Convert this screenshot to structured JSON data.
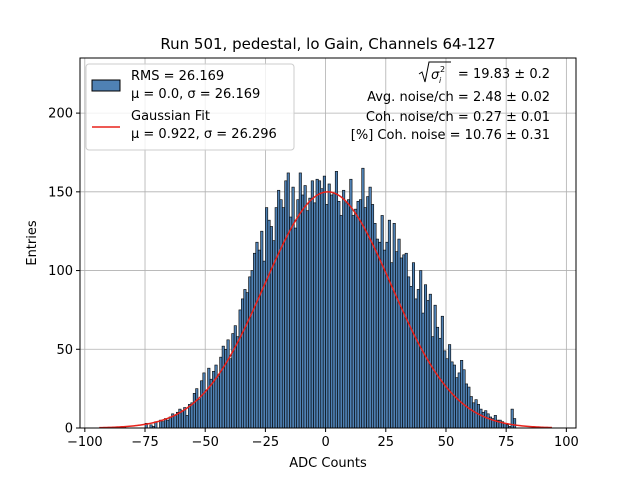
{
  "chart_data": {
    "type": "bar",
    "title": "Run 501, pedestal, lo Gain, Channels 64-127",
    "xlabel": "ADC Counts",
    "ylabel": "Entries",
    "xlim": [
      -102,
      104
    ],
    "ylim": [
      0,
      235
    ],
    "grid": true,
    "x_ticks": [
      -100,
      -75,
      -50,
      -25,
      0,
      25,
      50,
      75,
      100
    ],
    "x_tick_labels": [
      "−100",
      "−75",
      "−50",
      "−25",
      "0",
      "25",
      "50",
      "75",
      "100"
    ],
    "y_ticks": [
      0,
      50,
      100,
      150,
      200
    ],
    "y_tick_labels": [
      "0",
      "50",
      "100",
      "150",
      "200"
    ],
    "bar_color": "#4f81b4",
    "fit_color": "#e8221b",
    "legend_placement": "upper left",
    "legend": [
      {
        "kind": "patch",
        "line1": "RMS = 26.169",
        "line2": "μ = 0.0, σ = 26.169"
      },
      {
        "kind": "line",
        "line1": "Gaussian Fit",
        "line2": "μ = 0.922, σ = 26.296"
      }
    ],
    "annotations": {
      "sqrt_sigma_value": "= 19.83 ± 0.2",
      "avg_noise": "Avg. noise/ch = 2.48 ± 0.02",
      "coh_noise": "Coh. noise/ch = 0.27 ± 0.01",
      "pct_coh_noise": "[%] Coh. noise = 10.76 ± 0.31"
    },
    "histogram": {
      "bin_width": 1,
      "bin_lefts": [
        -84,
        -75,
        -73,
        -72,
        -71,
        -69,
        -68,
        -67,
        -66,
        -65,
        -64,
        -63,
        -62,
        -61,
        -60,
        -59,
        -58,
        -57,
        -56,
        -55,
        -54,
        -53,
        -52,
        -51,
        -50,
        -49,
        -48,
        -47,
        -46,
        -45,
        -44,
        -43,
        -42,
        -41,
        -40,
        -39,
        -38,
        -37,
        -36,
        -35,
        -34,
        -33,
        -32,
        -31,
        -30,
        -29,
        -28,
        -27,
        -26,
        -25,
        -24,
        -23,
        -22,
        -21,
        -20,
        -19,
        -18,
        -17,
        -16,
        -15,
        -14,
        -13,
        -12,
        -11,
        -10,
        -9,
        -8,
        -7,
        -6,
        -5,
        -4,
        -3,
        -2,
        -1,
        0,
        1,
        2,
        3,
        4,
        5,
        6,
        7,
        8,
        9,
        10,
        11,
        12,
        13,
        14,
        15,
        16,
        17,
        18,
        19,
        20,
        21,
        22,
        23,
        24,
        25,
        26,
        27,
        28,
        29,
        30,
        31,
        32,
        33,
        34,
        35,
        36,
        37,
        38,
        39,
        40,
        41,
        42,
        43,
        44,
        45,
        46,
        47,
        48,
        49,
        50,
        51,
        52,
        53,
        54,
        55,
        56,
        57,
        58,
        59,
        60,
        61,
        62,
        63,
        64,
        65,
        66,
        67,
        68,
        69,
        70,
        71,
        72,
        73,
        74,
        75,
        76,
        77,
        78
      ],
      "values": [
        1,
        3,
        2,
        1,
        4,
        5,
        4,
        6,
        5,
        7,
        9,
        8,
        10,
        12,
        11,
        13,
        8,
        15,
        16,
        22,
        25,
        18,
        30,
        35,
        24,
        38,
        31,
        36,
        40,
        33,
        45,
        52,
        50,
        56,
        44,
        60,
        65,
        58,
        75,
        82,
        88,
        86,
        96,
        100,
        111,
        118,
        113,
        125,
        106,
        140,
        132,
        128,
        119,
        140,
        151,
        145,
        140,
        157,
        162,
        134,
        153,
        127,
        145,
        162,
        148,
        154,
        138,
        146,
        157,
        143,
        158,
        157,
        152,
        160,
        142,
        155,
        148,
        149,
        163,
        144,
        135,
        151,
        143,
        145,
        158,
        135,
        139,
        144,
        145,
        165,
        140,
        147,
        153,
        142,
        130,
        120,
        118,
        135,
        113,
        118,
        132,
        105,
        130,
        112,
        120,
        108,
        110,
        111,
        96,
        90,
        105,
        82,
        88,
        100,
        73,
        91,
        81,
        85,
        58,
        78,
        64,
        57,
        71,
        49,
        44,
        53,
        42,
        40,
        32,
        35,
        43,
        37,
        28,
        26,
        20,
        16,
        18,
        15,
        12,
        10,
        11,
        9,
        7,
        6,
        8,
        5,
        5,
        4,
        3,
        2,
        1,
        12,
        6
      ]
    },
    "fit": {
      "label": "Gaussian Fit",
      "mu": 0.922,
      "sigma": 26.296,
      "amplitude": 150,
      "x_range": [
        -94,
        94
      ]
    }
  }
}
